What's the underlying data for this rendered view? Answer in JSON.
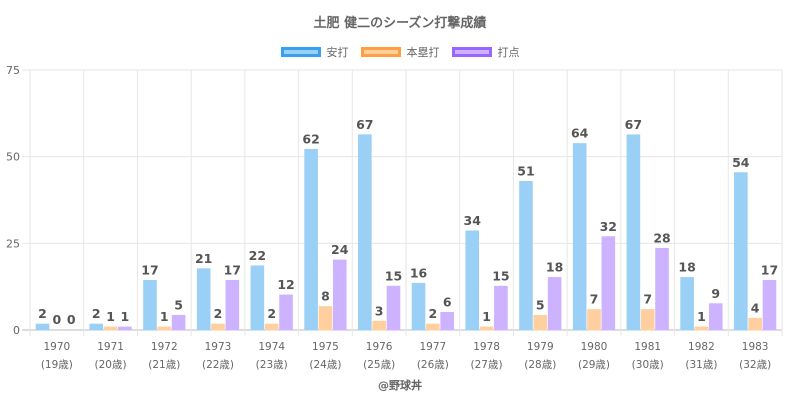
{
  "chart_data": {
    "type": "bar",
    "title": "土肥 健二のシーズン打撃成績",
    "categories": [
      "1970",
      "1971",
      "1972",
      "1973",
      "1974",
      "1975",
      "1976",
      "1977",
      "1978",
      "1979",
      "1980",
      "1981",
      "1982",
      "1983"
    ],
    "sub_categories": [
      "(19歳)",
      "(20歳)",
      "(21歳)",
      "(22歳)",
      "(23歳)",
      "(24歳)",
      "(25歳)",
      "(26歳)",
      "(27歳)",
      "(28歳)",
      "(29歳)",
      "(30歳)",
      "(31歳)",
      "(32歳)"
    ],
    "series": [
      {
        "name": "安打",
        "color": "#9ad0f5",
        "border": "#36a2eb",
        "values": [
          2,
          2,
          17,
          21,
          22,
          62,
          67,
          16,
          34,
          51,
          64,
          67,
          18,
          54
        ]
      },
      {
        "name": "本塁打",
        "color": "#ffcf9f",
        "border": "#ff9f40",
        "values": [
          0,
          1,
          1,
          2,
          2,
          8,
          3,
          2,
          1,
          5,
          7,
          7,
          1,
          4
        ]
      },
      {
        "name": "打点",
        "color": "#ccb2ff",
        "border": "#9966ff",
        "values": [
          0,
          1,
          5,
          17,
          12,
          24,
          15,
          6,
          15,
          18,
          32,
          28,
          9,
          17
        ]
      }
    ],
    "yticks": [
      0,
      25,
      50,
      75
    ],
    "ylim": [
      0,
      75
    ],
    "xlabel": "",
    "ylabel": "",
    "grid": true,
    "legend_position": "top-center"
  },
  "credit": "@野球丼"
}
